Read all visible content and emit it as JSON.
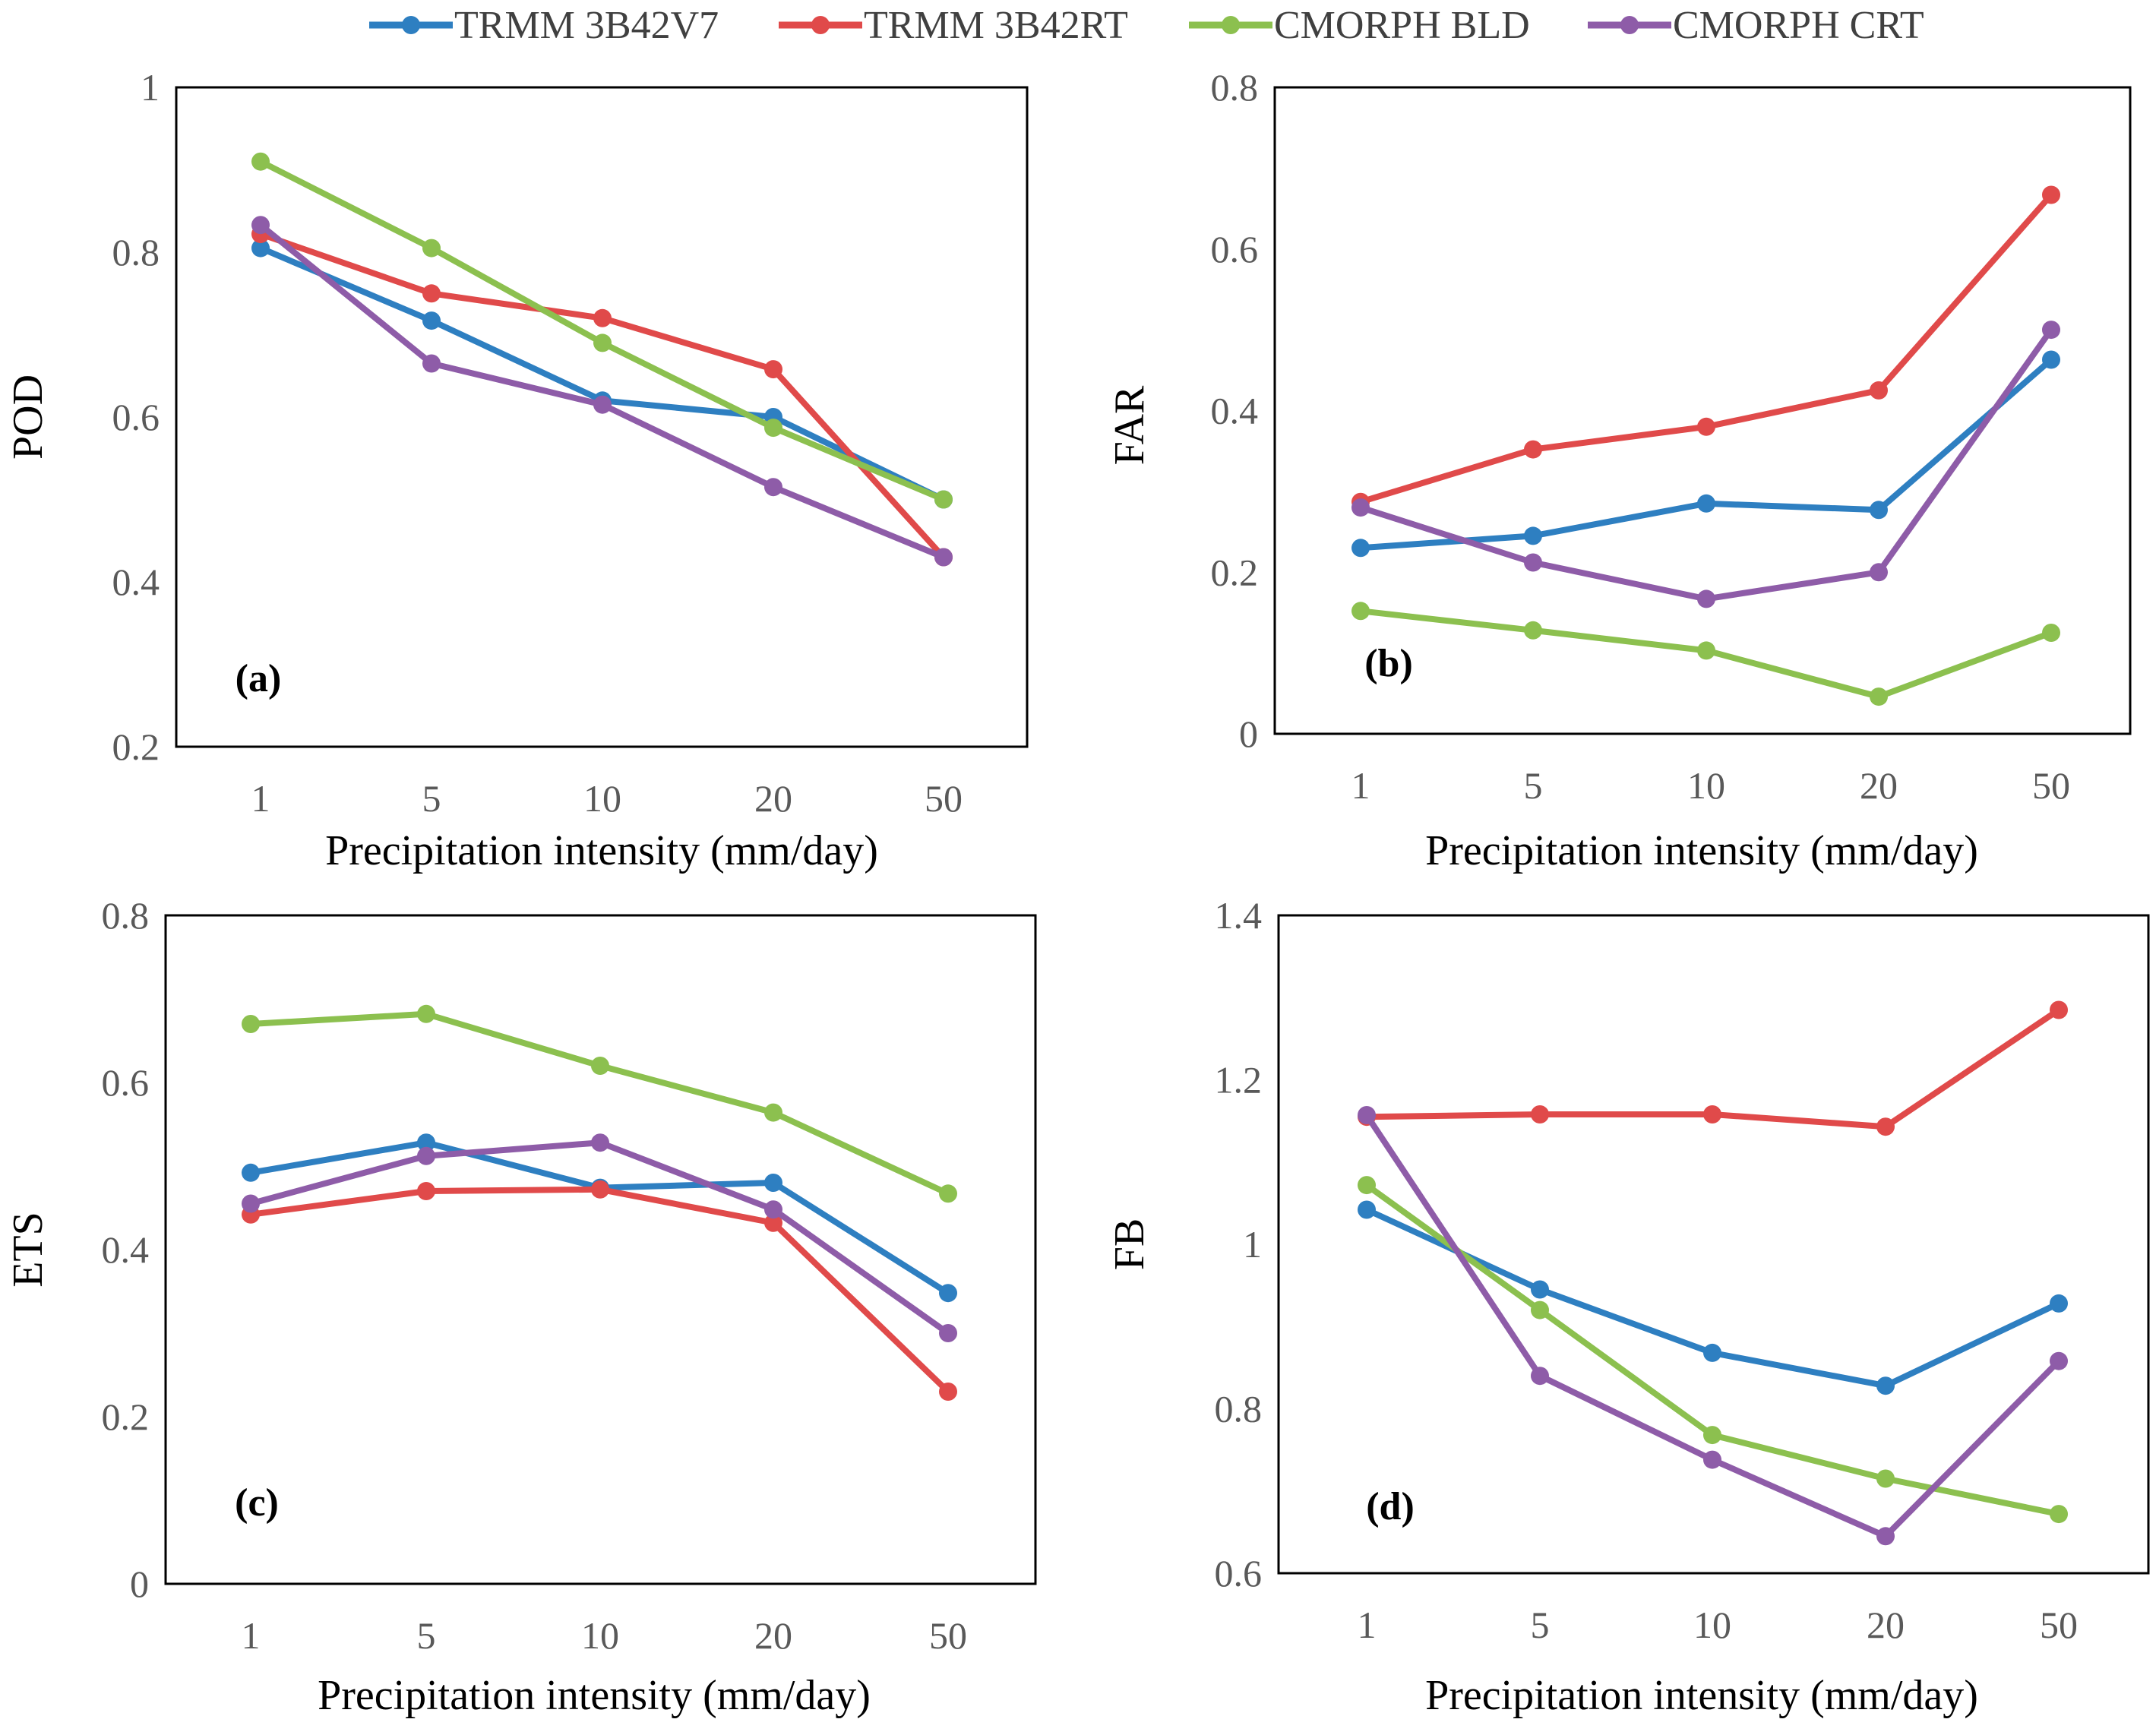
{
  "legend": [
    {
      "name": "TRMM 3B42V7",
      "color": "#2E7FC1"
    },
    {
      "name": "TRMM 3B42RT",
      "color": "#E04A4A"
    },
    {
      "name": "CMORPH BLD",
      "color": "#8CC04F"
    },
    {
      "name": "CMORPH CRT",
      "color": "#8E5CA8"
    }
  ],
  "chart_data": [
    {
      "type": "line",
      "panel": "(a)",
      "xlabel": "Precipitation intensity (mm/day)",
      "ylabel": "POD",
      "categories": [
        "1",
        "5",
        "10",
        "20",
        "50"
      ],
      "ylim": [
        0.2,
        1.0
      ],
      "yticks": [
        "0.2",
        "0.4",
        "0.6",
        "0.8",
        "1"
      ],
      "series": [
        {
          "name": "TRMM 3B42V7",
          "values": [
            0.805,
            0.717,
            0.62,
            0.6,
            0.5
          ]
        },
        {
          "name": "TRMM 3B42RT",
          "values": [
            0.822,
            0.75,
            0.72,
            0.658,
            0.43
          ]
        },
        {
          "name": "CMORPH BLD",
          "values": [
            0.91,
            0.805,
            0.69,
            0.587,
            0.5
          ]
        },
        {
          "name": "CMORPH CRT",
          "values": [
            0.833,
            0.665,
            0.615,
            0.515,
            0.43
          ]
        }
      ]
    },
    {
      "type": "line",
      "panel": "(b)",
      "xlabel": "Precipitation intensity (mm/day)",
      "ylabel": "FAR",
      "categories": [
        "1",
        "5",
        "10",
        "20",
        "50"
      ],
      "ylim": [
        0,
        0.8
      ],
      "yticks": [
        "0",
        "0.2",
        "0.4",
        "0.6",
        "0.8"
      ],
      "series": [
        {
          "name": "TRMM 3B42V7",
          "values": [
            0.23,
            0.245,
            0.285,
            0.277,
            0.463
          ]
        },
        {
          "name": "TRMM 3B42RT",
          "values": [
            0.287,
            0.352,
            0.38,
            0.425,
            0.667
          ]
        },
        {
          "name": "CMORPH BLD",
          "values": [
            0.152,
            0.128,
            0.103,
            0.046,
            0.125
          ]
        },
        {
          "name": "CMORPH CRT",
          "values": [
            0.28,
            0.212,
            0.167,
            0.2,
            0.5
          ]
        }
      ]
    },
    {
      "type": "line",
      "panel": "(c)",
      "xlabel": "Precipitation intensity (mm/day)",
      "ylabel": "ETS",
      "categories": [
        "1",
        "5",
        "10",
        "20",
        "50"
      ],
      "ylim": [
        0,
        0.8
      ],
      "yticks": [
        "0",
        "0.2",
        "0.4",
        "0.6",
        "0.8"
      ],
      "series": [
        {
          "name": "TRMM 3B42V7",
          "values": [
            0.492,
            0.528,
            0.474,
            0.48,
            0.348
          ]
        },
        {
          "name": "TRMM 3B42RT",
          "values": [
            0.442,
            0.47,
            0.472,
            0.432,
            0.23
          ]
        },
        {
          "name": "CMORPH BLD",
          "values": [
            0.67,
            0.682,
            0.62,
            0.564,
            0.467
          ]
        },
        {
          "name": "CMORPH CRT",
          "values": [
            0.455,
            0.512,
            0.528,
            0.448,
            0.3
          ]
        }
      ]
    },
    {
      "type": "line",
      "panel": "(d)",
      "xlabel": "Precipitation intensity (mm/day)",
      "ylabel": "FB",
      "categories": [
        "1",
        "5",
        "10",
        "20",
        "50"
      ],
      "ylim": [
        0.6,
        1.4
      ],
      "yticks": [
        "0.6",
        "0.8",
        "1",
        "1.2",
        "1.4"
      ],
      "series": [
        {
          "name": "TRMM 3B42V7",
          "values": [
            1.042,
            0.945,
            0.868,
            0.828,
            0.928
          ]
        },
        {
          "name": "TRMM 3B42RT",
          "values": [
            1.155,
            1.158,
            1.158,
            1.143,
            1.285
          ]
        },
        {
          "name": "CMORPH BLD",
          "values": [
            1.072,
            0.92,
            0.768,
            0.715,
            0.672
          ]
        },
        {
          "name": "CMORPH CRT",
          "values": [
            1.157,
            0.84,
            0.738,
            0.645,
            0.858
          ]
        }
      ]
    }
  ]
}
